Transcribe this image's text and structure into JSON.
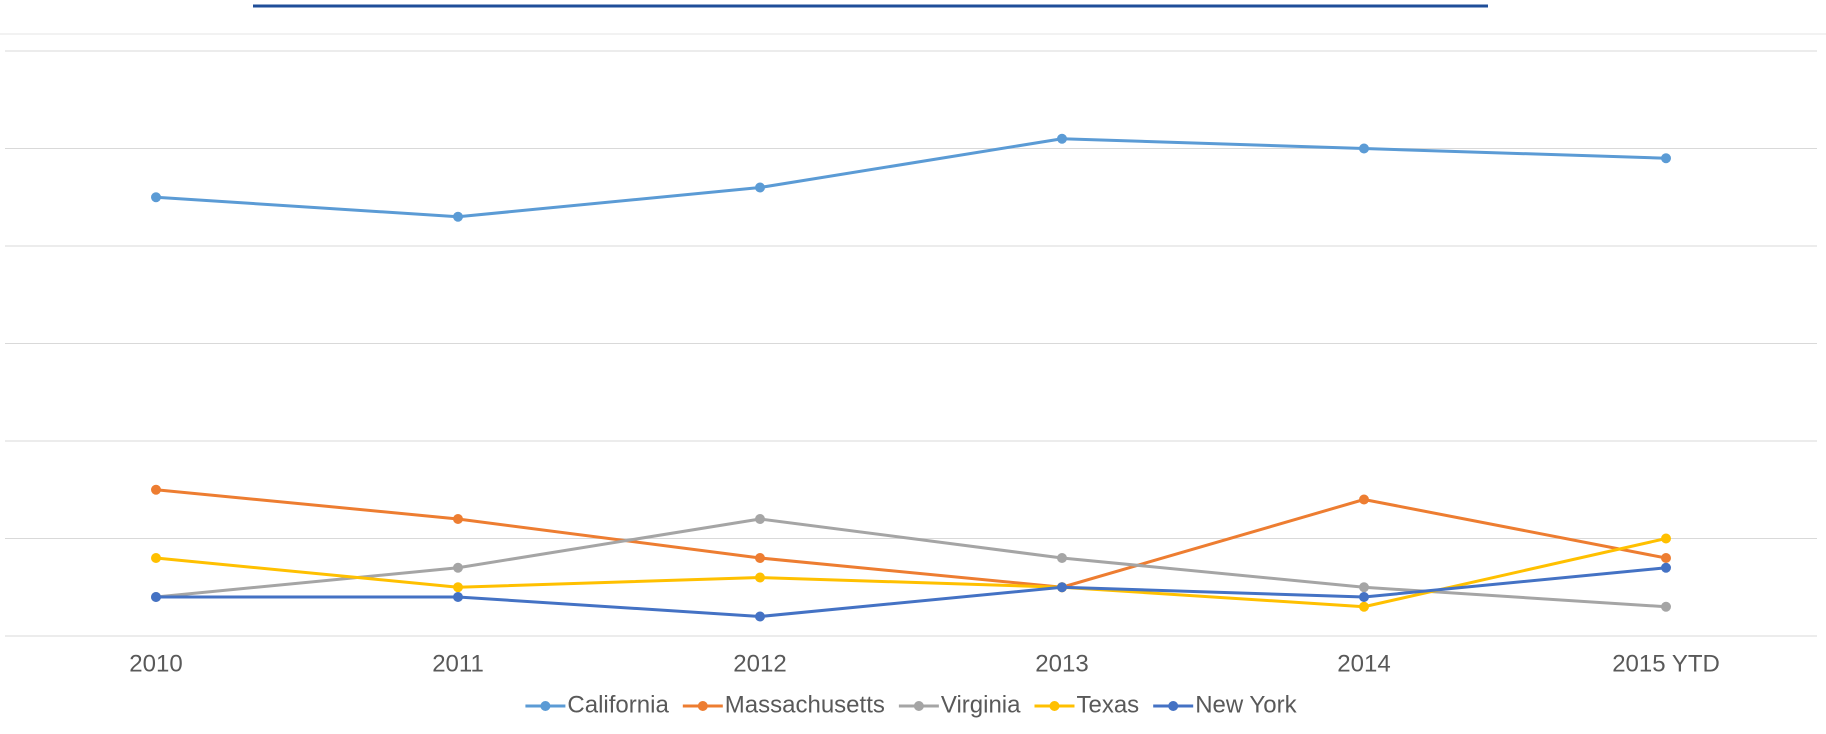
{
  "chart_data": {
    "type": "line",
    "categories": [
      "2010",
      "2011",
      "2012",
      "2013",
      "2014",
      "2015 YTD"
    ],
    "series": [
      {
        "name": "California",
        "color": "#5b9bd5",
        "values": [
          45,
          43,
          46,
          51,
          50,
          49
        ]
      },
      {
        "name": "Massachusetts",
        "color": "#ed7d31",
        "values": [
          15,
          12,
          8,
          5,
          14,
          8
        ]
      },
      {
        "name": "Virginia",
        "color": "#a5a5a5",
        "values": [
          4,
          7,
          12,
          8,
          5,
          3
        ]
      },
      {
        "name": "Texas",
        "color": "#ffc000",
        "values": [
          8,
          5,
          6,
          5,
          3,
          10
        ]
      },
      {
        "name": "New York",
        "color": "#4472c4",
        "values": [
          4,
          4,
          2,
          5,
          4,
          7
        ]
      }
    ],
    "ylim": [
      0,
      60
    ],
    "yticks": [
      0,
      10,
      20,
      30,
      40,
      50,
      60
    ],
    "grid": true,
    "legend": "bottom"
  }
}
